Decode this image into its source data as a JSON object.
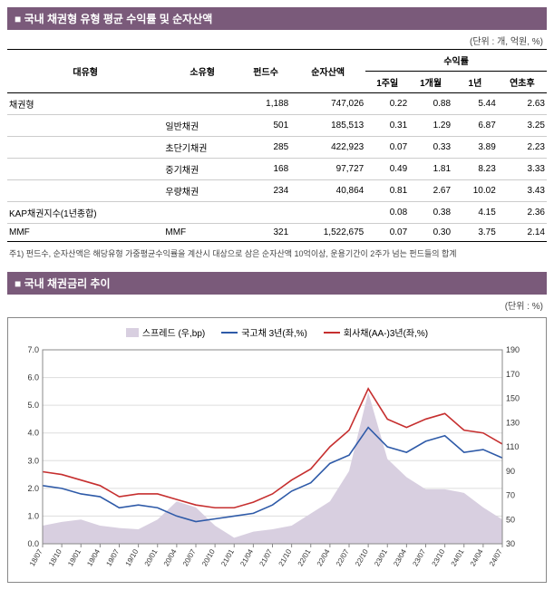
{
  "section1": {
    "title": "■ 국내 채권형 유형 평균 수익률 및 순자산액",
    "unit": "(단위 : 개, 억원, %)",
    "headers": {
      "category": "대유형",
      "subcategory": "소유형",
      "fundcount": "펀드수",
      "nav": "순자산액",
      "returns": "수익률",
      "r1w": "1주일",
      "r1m": "1개월",
      "r1y": "1년",
      "rytd": "연초후"
    },
    "rows": [
      {
        "cat": "채권형",
        "sub": "",
        "funds": "1,188",
        "nav": "747,026",
        "r1w": "0.22",
        "r1m": "0.88",
        "r1y": "5.44",
        "rytd": "2.63"
      },
      {
        "cat": "",
        "sub": "일반채권",
        "funds": "501",
        "nav": "185,513",
        "r1w": "0.31",
        "r1m": "1.29",
        "r1y": "6.87",
        "rytd": "3.25"
      },
      {
        "cat": "",
        "sub": "초단기채권",
        "funds": "285",
        "nav": "422,923",
        "r1w": "0.07",
        "r1m": "0.33",
        "r1y": "3.89",
        "rytd": "2.23"
      },
      {
        "cat": "",
        "sub": "중기채권",
        "funds": "168",
        "nav": "97,727",
        "r1w": "0.49",
        "r1m": "1.81",
        "r1y": "8.23",
        "rytd": "3.33"
      },
      {
        "cat": "",
        "sub": "우량채권",
        "funds": "234",
        "nav": "40,864",
        "r1w": "0.81",
        "r1m": "2.67",
        "r1y": "10.02",
        "rytd": "3.43"
      },
      {
        "cat": "KAP채권지수(1년종합)",
        "sub": "",
        "funds": "",
        "nav": "",
        "r1w": "0.08",
        "r1m": "0.38",
        "r1y": "4.15",
        "rytd": "2.36"
      },
      {
        "cat": "MMF",
        "sub": "MMF",
        "funds": "321",
        "nav": "1,522,675",
        "r1w": "0.07",
        "r1m": "0.30",
        "r1y": "3.75",
        "rytd": "2.14"
      }
    ],
    "footnote": "주1) 펀드수, 순자산액은 해당유형 가중평균수익률을 계산시 대상으로 삼은 순자산액 10억이상, 운용기간이 2주가 넘는 펀드들의 합계"
  },
  "section2": {
    "title": "■ 국내 채권금리 추이",
    "unit": "(단위 : %)",
    "legend": {
      "spread": "스프레드 (우,bp)",
      "ktb": "국고채 3년(좌,%)",
      "corp": "회사채(AA-)3년(좌,%)"
    },
    "chart": {
      "left_ylim": [
        0,
        7
      ],
      "left_ticks": [
        0,
        1,
        2,
        3,
        4,
        5,
        6,
        7
      ],
      "right_ylim": [
        30,
        190
      ],
      "right_ticks": [
        30,
        50,
        70,
        90,
        110,
        130,
        150,
        170,
        190
      ],
      "x_labels": [
        "18/07",
        "18/10",
        "19/01",
        "19/04",
        "19/07",
        "19/10",
        "20/01",
        "20/04",
        "20/07",
        "20/10",
        "21/01",
        "21/04",
        "21/07",
        "21/10",
        "22/01",
        "22/04",
        "22/07",
        "22/10",
        "23/01",
        "23/04",
        "23/07",
        "23/10",
        "24/01",
        "24/04",
        "24/07"
      ],
      "colors": {
        "spread": "#d8cfe0",
        "ktb": "#2e5aa8",
        "corp": "#c62f2f",
        "grid": "#dddddd",
        "bg": "#ffffff"
      },
      "ktb": [
        2.1,
        2.0,
        1.8,
        1.7,
        1.3,
        1.4,
        1.3,
        1.0,
        0.8,
        0.9,
        1.0,
        1.1,
        1.4,
        1.9,
        2.2,
        2.9,
        3.2,
        4.2,
        3.5,
        3.3,
        3.7,
        3.9,
        3.3,
        3.4,
        3.1
      ],
      "corp": [
        2.6,
        2.5,
        2.3,
        2.1,
        1.7,
        1.8,
        1.8,
        1.6,
        1.4,
        1.3,
        1.3,
        1.5,
        1.8,
        2.3,
        2.7,
        3.5,
        4.1,
        5.6,
        4.5,
        4.2,
        4.5,
        4.7,
        4.1,
        4.0,
        3.6
      ],
      "spread": [
        45,
        48,
        50,
        45,
        43,
        42,
        50,
        65,
        60,
        45,
        35,
        40,
        42,
        45,
        55,
        65,
        90,
        155,
        100,
        85,
        75,
        75,
        72,
        60,
        50
      ]
    }
  }
}
